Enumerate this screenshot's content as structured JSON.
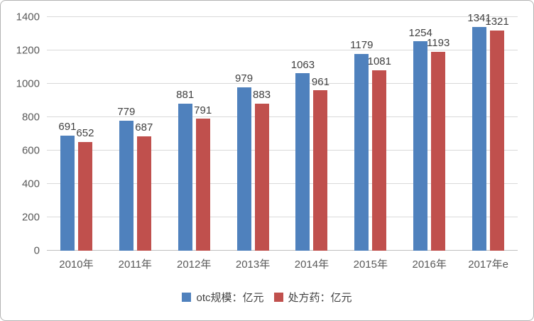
{
  "chart_data": {
    "type": "bar",
    "title": "",
    "categories": [
      "2010年",
      "2011年",
      "2012年",
      "2013年",
      "2014年",
      "2015年",
      "2016年",
      "2017年e"
    ],
    "series": [
      {
        "key": "otc",
        "name": "otc规模：亿元",
        "color": "#4F81BD",
        "values": [
          691,
          779,
          881,
          979,
          1063,
          1179,
          1254,
          1341
        ]
      },
      {
        "key": "prescription",
        "name": "处方药：亿元",
        "color": "#C0504D",
        "values": [
          652,
          687,
          791,
          883,
          961,
          1081,
          1193,
          1321
        ]
      }
    ],
    "xlabel": "",
    "ylabel": "",
    "ylim": [
      0,
      1400
    ],
    "y_ticks": [
      "0",
      "200",
      "400",
      "600",
      "800",
      "1000",
      "1200",
      "1400"
    ],
    "grid": true,
    "legend_position": "bottom",
    "data_labels": true
  },
  "colors": {
    "gridline": "#D9D9D9",
    "axis_line": "#BFBFBF",
    "tick_label": "#595959",
    "data_label": "#404040",
    "frame_border": "#B3B3B3",
    "background": "#FFFFFF"
  }
}
